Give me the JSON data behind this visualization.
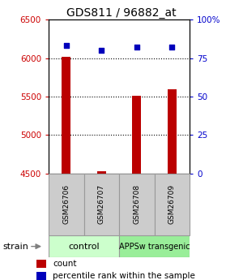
{
  "title": "GDS811 / 96882_at",
  "samples": [
    "GSM26706",
    "GSM26707",
    "GSM26708",
    "GSM26709"
  ],
  "counts": [
    6020,
    4535,
    5510,
    5600
  ],
  "percentiles": [
    83,
    80,
    82,
    82
  ],
  "ylim_left": [
    4500,
    6500
  ],
  "ylim_right": [
    0,
    100
  ],
  "yticks_left": [
    4500,
    5000,
    5500,
    6000,
    6500
  ],
  "yticks_right": [
    0,
    25,
    50,
    75,
    100
  ],
  "ytick_labels_right": [
    "0",
    "25",
    "50",
    "75",
    "100%"
  ],
  "bar_color": "#bb0000",
  "dot_color": "#0000bb",
  "bar_width": 0.25,
  "groups": [
    {
      "label": "control",
      "samples": [
        0,
        1
      ],
      "color": "#ccffcc"
    },
    {
      "label": "APPSw transgenic",
      "samples": [
        2,
        3
      ],
      "color": "#99ee99"
    }
  ],
  "sample_box_color": "#cccccc",
  "sample_box_edge": "#999999",
  "strain_label": "strain",
  "legend_count_label": "count",
  "legend_pct_label": "percentile rank within the sample",
  "bg_color": "#ffffff",
  "left_tick_color": "#cc0000",
  "right_tick_color": "#0000cc"
}
